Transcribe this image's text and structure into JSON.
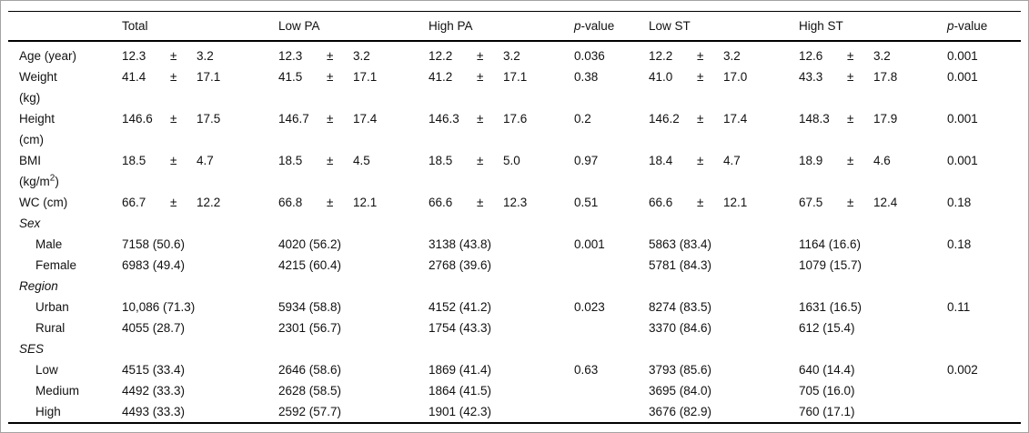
{
  "meta": {
    "pm": "±"
  },
  "table": {
    "columns": {
      "total": "Total",
      "low_pa": "Low PA",
      "high_pa": "High PA",
      "low_st": "Low ST",
      "high_st": "High ST",
      "p_italic": "p",
      "p_rest": "-value"
    },
    "rows": [
      {
        "kind": "measure",
        "label_lines": [
          "Age (year)"
        ],
        "total": [
          "12.3",
          "3.2"
        ],
        "low_pa": [
          "12.3",
          "3.2"
        ],
        "high_pa": [
          "12.2",
          "3.2"
        ],
        "p1": "0.036",
        "low_st": [
          "12.2",
          "3.2"
        ],
        "high_st": [
          "12.6",
          "3.2"
        ],
        "p2": "0.001"
      },
      {
        "kind": "measure",
        "label_lines": [
          "Weight",
          "(kg)"
        ],
        "total": [
          "41.4",
          "17.1"
        ],
        "low_pa": [
          "41.5",
          "17.1"
        ],
        "high_pa": [
          "41.2",
          "17.1"
        ],
        "p1": "0.38",
        "low_st": [
          "41.0",
          "17.0"
        ],
        "high_st": [
          "43.3",
          "17.8"
        ],
        "p2": "0.001"
      },
      {
        "kind": "measure",
        "label_lines": [
          "Height",
          "(cm)"
        ],
        "total": [
          "146.6",
          "17.5"
        ],
        "low_pa": [
          "146.7",
          "17.4"
        ],
        "high_pa": [
          "146.3",
          "17.6"
        ],
        "p1": "0.2",
        "low_st": [
          "146.2",
          "17.4"
        ],
        "high_st": [
          "148.3",
          "17.9"
        ],
        "p2": "0.001"
      },
      {
        "kind": "measure",
        "label_lines": [
          "BMI"
        ],
        "label2_parts": {
          "pre": "(kg/m",
          "sup": "2",
          "post": ")"
        },
        "total": [
          "18.5",
          "4.7"
        ],
        "low_pa": [
          "18.5",
          "4.5"
        ],
        "high_pa": [
          "18.5",
          "5.0"
        ],
        "p1": "0.97",
        "low_st": [
          "18.4",
          "4.7"
        ],
        "high_st": [
          "18.9",
          "4.6"
        ],
        "p2": "0.001"
      },
      {
        "kind": "measure",
        "label_lines": [
          "WC (cm)"
        ],
        "total": [
          "66.7",
          "12.2"
        ],
        "low_pa": [
          "66.8",
          "12.1"
        ],
        "high_pa": [
          "66.6",
          "12.3"
        ],
        "p1": "0.51",
        "low_st": [
          "66.6",
          "12.1"
        ],
        "high_st": [
          "67.5",
          "12.4"
        ],
        "p2": "0.18"
      },
      {
        "kind": "section",
        "label": "Sex"
      },
      {
        "kind": "count",
        "indent": true,
        "label_lines": [
          "Male"
        ],
        "total": "7158 (50.6)",
        "low_pa": "4020 (56.2)",
        "high_pa": "3138 (43.8)",
        "p1": "0.001",
        "low_st": "5863 (83.4)",
        "high_st": "1164 (16.6)",
        "p2": "0.18"
      },
      {
        "kind": "count",
        "indent": true,
        "label_lines": [
          "Female"
        ],
        "total": "6983 (49.4)",
        "low_pa": "4215 (60.4)",
        "high_pa": "2768 (39.6)",
        "low_st": "5781 (84.3)",
        "high_st": "1079 (15.7)"
      },
      {
        "kind": "section",
        "label": "Region"
      },
      {
        "kind": "count",
        "indent": true,
        "label_lines": [
          "Urban"
        ],
        "total": "10,086 (71.3)",
        "low_pa": "5934 (58.8)",
        "high_pa": "4152 (41.2)",
        "p1": "0.023",
        "low_st": "8274 (83.5)",
        "high_st": "1631 (16.5)",
        "p2": "0.11"
      },
      {
        "kind": "count",
        "indent": true,
        "label_lines": [
          "Rural"
        ],
        "total": "4055 (28.7)",
        "low_pa": "2301 (56.7)",
        "high_pa": "1754 (43.3)",
        "low_st": "3370 (84.6)",
        "high_st": "612 (15.4)"
      },
      {
        "kind": "section",
        "label": "SES"
      },
      {
        "kind": "count",
        "indent": true,
        "label_lines": [
          "Low"
        ],
        "total": "4515 (33.4)",
        "low_pa": "2646 (58.6)",
        "high_pa": "1869 (41.4)",
        "p1": "0.63",
        "low_st": "3793 (85.6)",
        "high_st": "640 (14.4)",
        "p2": "0.002"
      },
      {
        "kind": "count",
        "indent": true,
        "label_lines": [
          "Medium"
        ],
        "total": "4492 (33.3)",
        "low_pa": "2628 (58.5)",
        "high_pa": "1864 (41.5)",
        "low_st": "3695 (84.0)",
        "high_st": "705 (16.0)"
      },
      {
        "kind": "count",
        "indent": true,
        "label_lines": [
          "High"
        ],
        "total": "4493 (33.3)",
        "low_pa": "2592 (57.7)",
        "high_pa": "1901 (42.3)",
        "low_st": "3676 (82.9)",
        "high_st": "760 (17.1)"
      }
    ]
  }
}
